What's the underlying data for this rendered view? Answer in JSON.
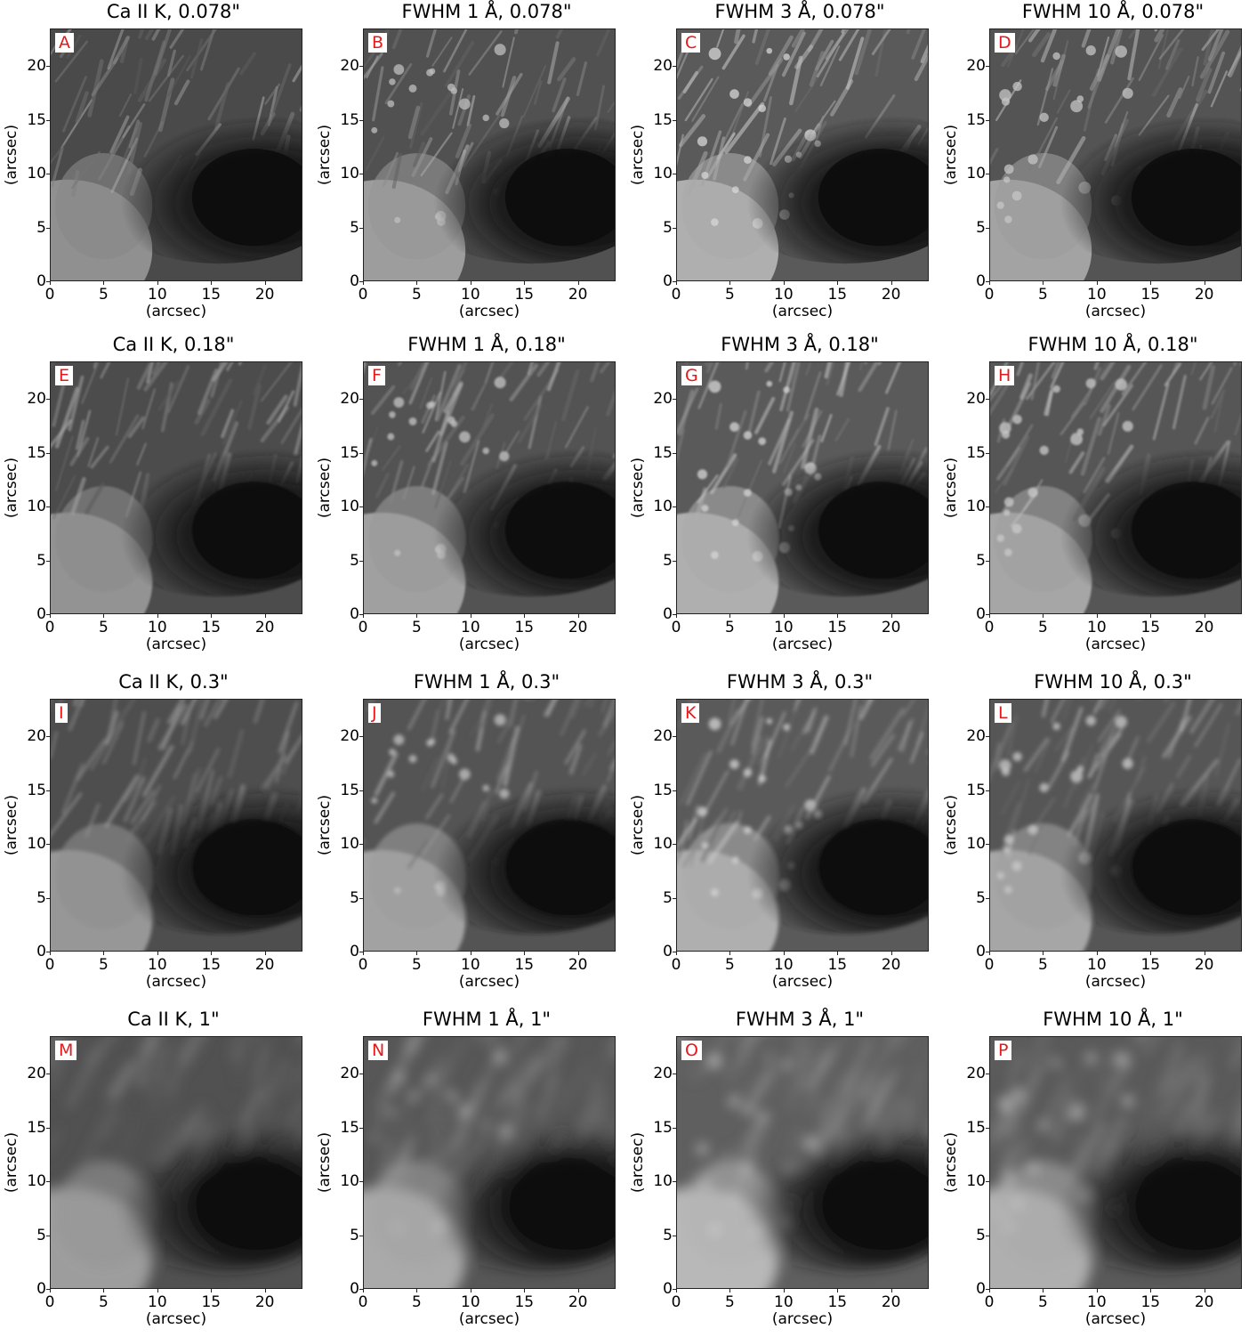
{
  "axis": {
    "xlabel": "(arcsec)",
    "ylabel": "(arcsec)",
    "xticks": [
      "0",
      "5",
      "10",
      "15",
      "20"
    ],
    "yticks": [
      "0",
      "5",
      "10",
      "15",
      "20"
    ],
    "range_arcsec": [
      0,
      23.5
    ]
  },
  "panels": [
    {
      "label": "A",
      "title": "Ca II K, 0.078\"",
      "series": "Ca II K",
      "resolution": "0.078\"",
      "blur": 0.4,
      "brightness": 0.78
    },
    {
      "label": "B",
      "title": "FWHM 1 Å, 0.078\"",
      "series": "FWHM 1 Å",
      "resolution": "0.078\"",
      "blur": 0.4,
      "brightness": 0.85
    },
    {
      "label": "C",
      "title": "FWHM 3 Å, 0.078\"",
      "series": "FWHM 3 Å",
      "resolution": "0.078\"",
      "blur": 0.4,
      "brightness": 0.95
    },
    {
      "label": "D",
      "title": "FWHM 10 Å, 0.078\"",
      "series": "FWHM 10 Å",
      "resolution": "0.078\"",
      "blur": 0.4,
      "brightness": 0.88
    },
    {
      "label": "E",
      "title": "Ca II K, 0.18\"",
      "series": "Ca II K",
      "resolution": "0.18\"",
      "blur": 1.2,
      "brightness": 0.8
    },
    {
      "label": "F",
      "title": "FWHM 1 Å, 0.18\"",
      "series": "FWHM 1 Å",
      "resolution": "0.18\"",
      "blur": 1.2,
      "brightness": 0.87
    },
    {
      "label": "G",
      "title": "FWHM 3 Å, 0.18\"",
      "series": "FWHM 3 Å",
      "resolution": "0.18\"",
      "blur": 1.2,
      "brightness": 0.95
    },
    {
      "label": "H",
      "title": "FWHM 10 Å, 0.18\"",
      "series": "FWHM 10 Å",
      "resolution": "0.18\"",
      "blur": 1.2,
      "brightness": 0.9
    },
    {
      "label": "I",
      "title": "Ca II K, 0.3\"",
      "series": "Ca II K",
      "resolution": "0.3\"",
      "blur": 2.2,
      "brightness": 0.82
    },
    {
      "label": "J",
      "title": "FWHM 1 Å, 0.3\"",
      "series": "FWHM 1 Å",
      "resolution": "0.3\"",
      "blur": 2.2,
      "brightness": 0.88
    },
    {
      "label": "K",
      "title": "FWHM 3 Å, 0.3\"",
      "series": "FWHM 3 Å",
      "resolution": "0.3\"",
      "blur": 2.2,
      "brightness": 0.95
    },
    {
      "label": "L",
      "title": "FWHM 10 Å, 0.3\"",
      "series": "FWHM 10 Å",
      "resolution": "0.3\"",
      "blur": 2.2,
      "brightness": 0.9
    },
    {
      "label": "M",
      "title": "Ca II K, 1\"",
      "series": "Ca II K",
      "resolution": "1\"",
      "blur": 7,
      "brightness": 0.85
    },
    {
      "label": "N",
      "title": "FWHM 1 Å, 1\"",
      "series": "FWHM 1 Å",
      "resolution": "1\"",
      "blur": 7,
      "brightness": 0.92
    },
    {
      "label": "O",
      "title": "FWHM 3 Å, 1\"",
      "series": "FWHM 3 Å",
      "resolution": "1\"",
      "blur": 7,
      "brightness": 1.0
    },
    {
      "label": "P",
      "title": "FWHM 10 Å, 1\"",
      "series": "FWHM 10 Å",
      "resolution": "1\"",
      "blur": 7,
      "brightness": 0.95
    }
  ],
  "colors": {
    "panel_label": "#e41a1c",
    "frame": "#222222",
    "background": "#ffffff"
  }
}
